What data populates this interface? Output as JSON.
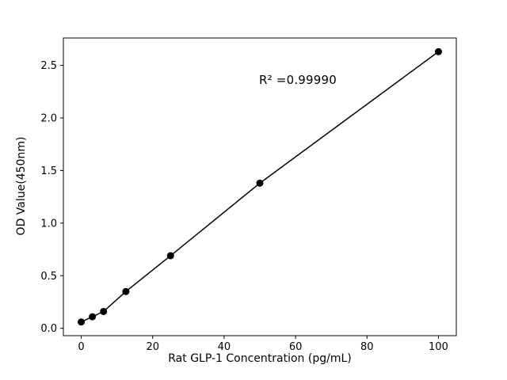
{
  "chart_data": {
    "type": "scatter",
    "title": "",
    "xlabel": "Rat GLP-1 Concentration (pg/mL)",
    "ylabel": "OD Value(450nm)",
    "annotation": "R² =0.99990",
    "x": [
      0,
      3.125,
      6.25,
      12.5,
      25,
      50,
      100
    ],
    "y": [
      0.06,
      0.11,
      0.16,
      0.35,
      0.69,
      1.38,
      2.63
    ],
    "xlim": [
      -5,
      105
    ],
    "ylim": [
      -0.07,
      2.76
    ],
    "xticks": {
      "values": [
        0,
        20,
        40,
        60,
        80,
        100
      ],
      "labels": [
        "0",
        "20",
        "40",
        "60",
        "80",
        "100"
      ]
    },
    "yticks": {
      "values": [
        0.0,
        0.5,
        1.0,
        1.5,
        2.0,
        2.5
      ],
      "labels": [
        "0.0",
        "0.5",
        "1.0",
        "1.5",
        "2.0",
        "2.5"
      ]
    },
    "line_color": "#000000",
    "marker_color": "#000000",
    "axis_color": "#000000",
    "background": "#ffffff",
    "grid": false,
    "legend": "none"
  }
}
